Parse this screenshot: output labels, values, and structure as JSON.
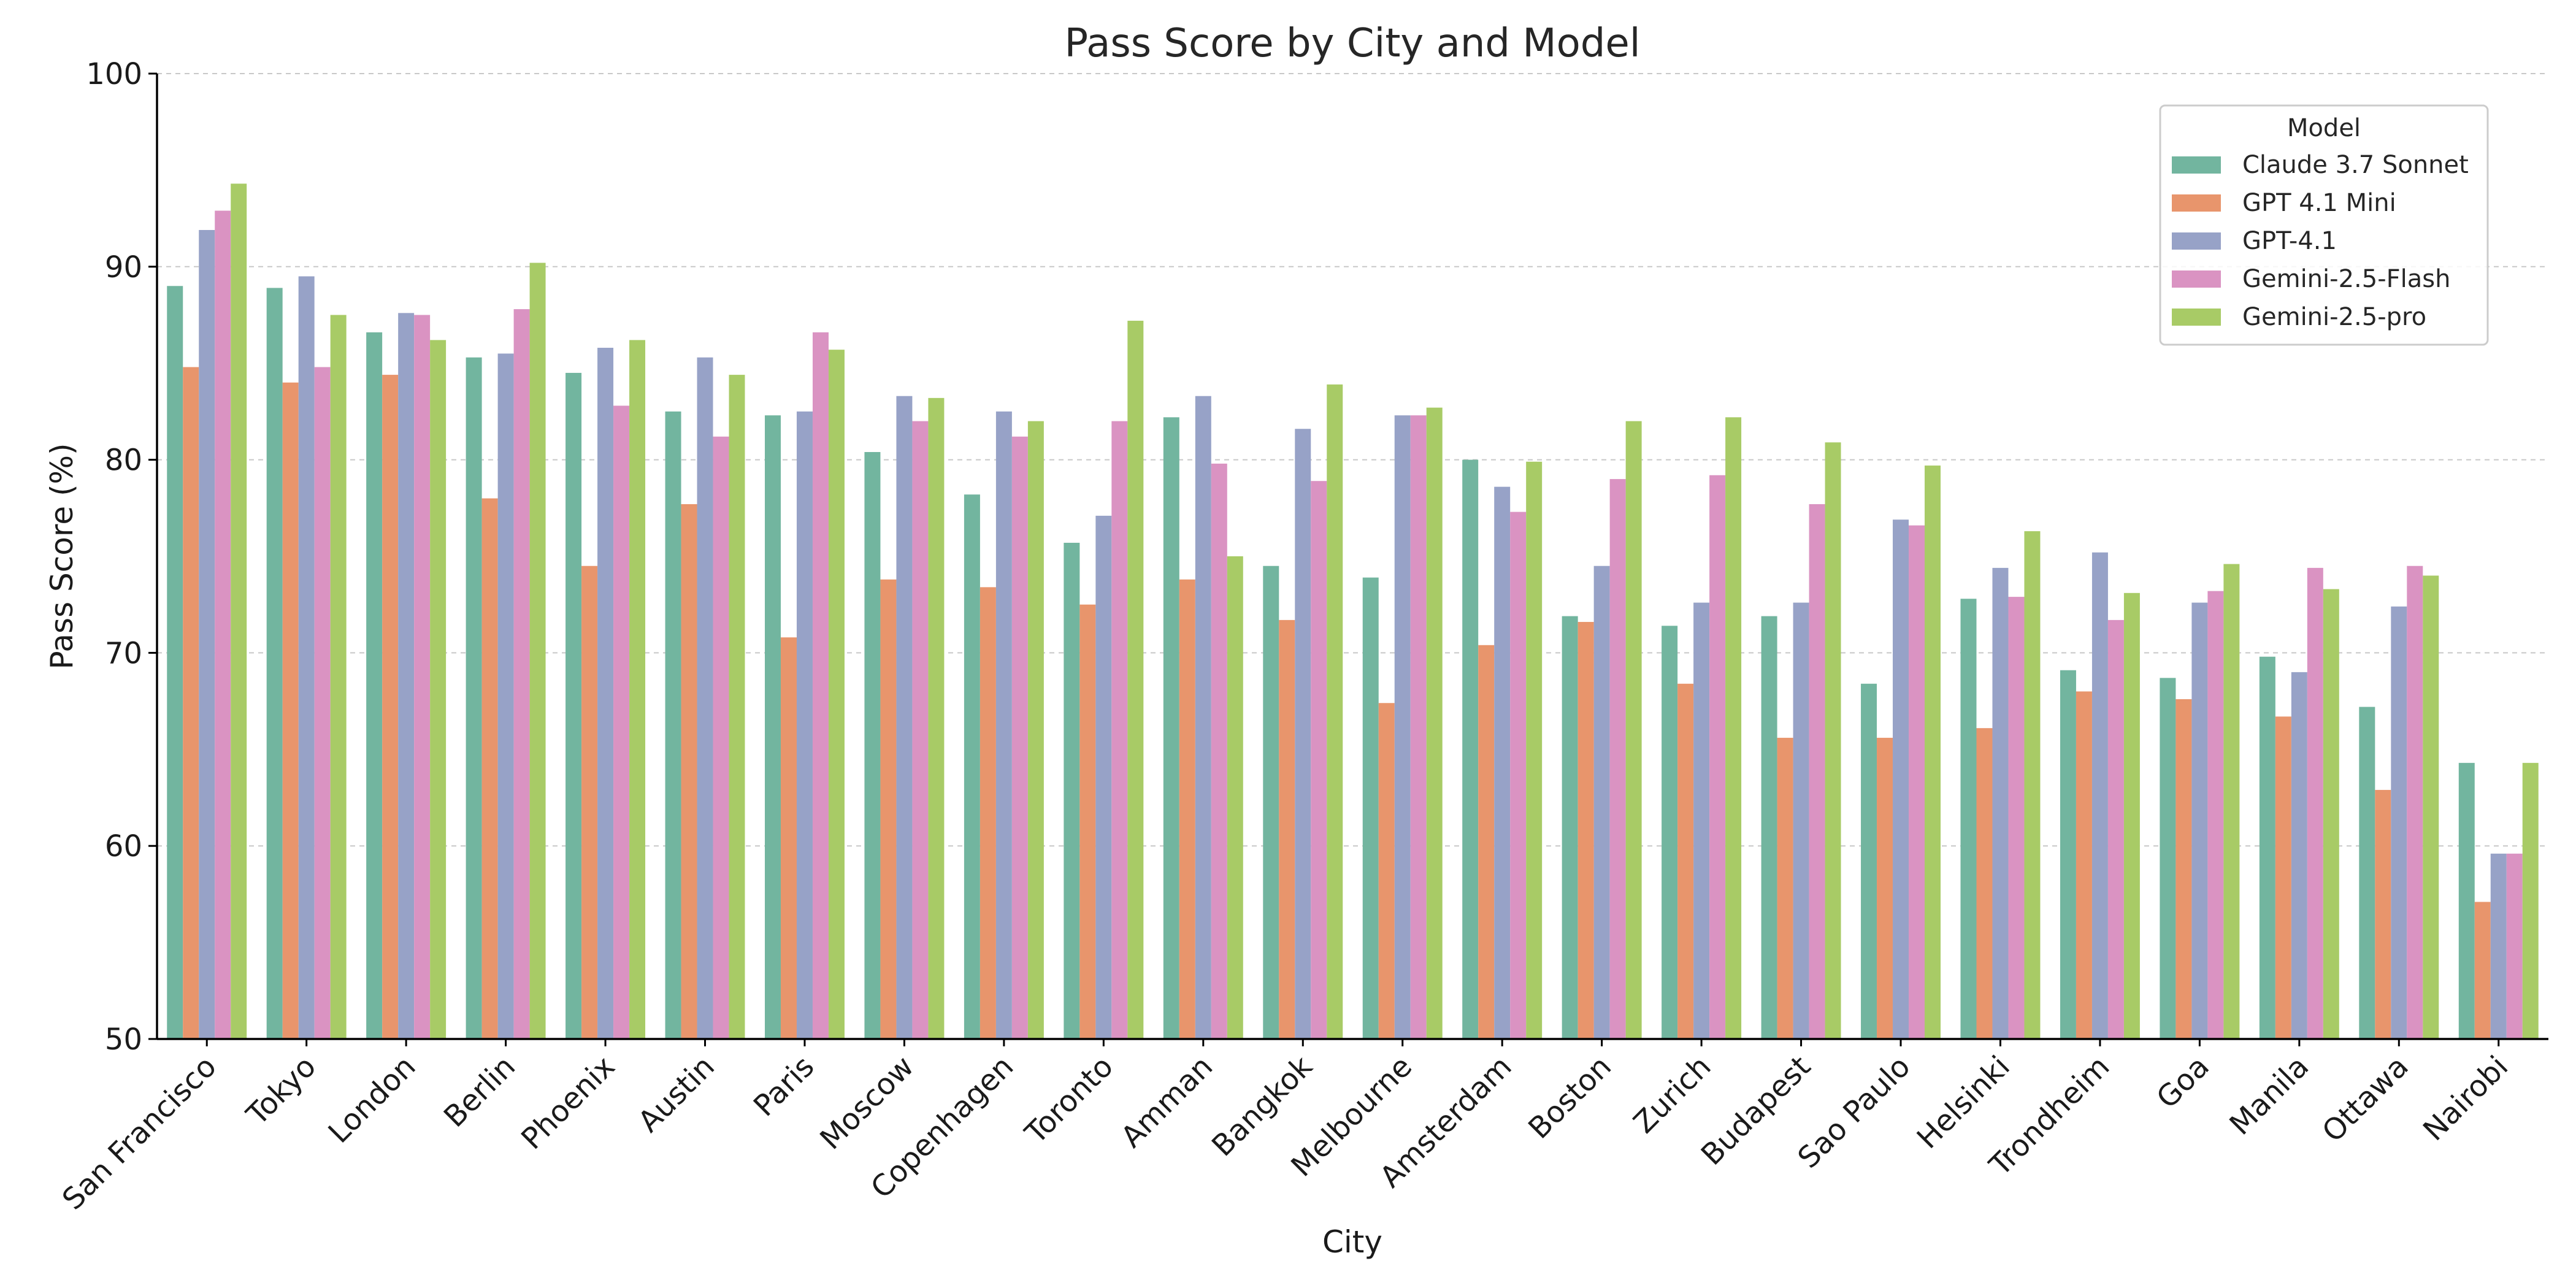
{
  "chart_data": {
    "type": "bar",
    "title": "Pass Score by City and Model",
    "xlabel": "City",
    "ylabel": "Pass Score (%)",
    "ylim": [
      50,
      100
    ],
    "yticks": [
      50,
      60,
      70,
      80,
      90,
      100
    ],
    "grid": "y-dashed",
    "legend": {
      "title": "Model",
      "position": "top-right"
    },
    "categories": [
      "San Francisco",
      "Tokyo",
      "London",
      "Berlin",
      "Phoenix",
      "Austin",
      "Paris",
      "Moscow",
      "Copenhagen",
      "Toronto",
      "Amman",
      "Bangkok",
      "Melbourne",
      "Amsterdam",
      "Boston",
      "Zurich",
      "Budapest",
      "Sao Paulo",
      "Helsinki",
      "Trondheim",
      "Goa",
      "Manila",
      "Ottawa",
      "Nairobi"
    ],
    "series": [
      {
        "name": "Claude 3.7 Sonnet",
        "color": "#72b59f",
        "values": [
          89.0,
          88.9,
          86.6,
          85.3,
          84.5,
          82.5,
          82.3,
          80.4,
          78.2,
          75.7,
          82.2,
          74.5,
          73.9,
          80.0,
          71.9,
          71.4,
          71.9,
          68.4,
          72.8,
          69.1,
          68.7,
          69.8,
          67.2,
          64.3
        ]
      },
      {
        "name": "GPT 4.1 Mini",
        "color": "#e8956c",
        "values": [
          84.8,
          84.0,
          84.4,
          78.0,
          74.5,
          77.7,
          70.8,
          73.8,
          73.4,
          72.5,
          73.8,
          71.7,
          67.4,
          70.4,
          71.6,
          68.4,
          65.6,
          65.6,
          66.1,
          68.0,
          67.6,
          66.7,
          62.9,
          57.1
        ]
      },
      {
        "name": "GPT-4.1",
        "color": "#97a2c7",
        "values": [
          91.9,
          89.5,
          87.6,
          85.5,
          85.8,
          85.3,
          82.5,
          83.3,
          82.5,
          77.1,
          83.3,
          81.6,
          82.3,
          78.6,
          74.5,
          72.6,
          72.6,
          76.9,
          74.4,
          75.2,
          72.6,
          69.0,
          72.4,
          59.6
        ]
      },
      {
        "name": "Gemini-2.5-Flash",
        "color": "#da93c2",
        "values": [
          92.9,
          84.8,
          87.5,
          87.8,
          82.8,
          81.2,
          86.6,
          82.0,
          81.2,
          82.0,
          79.8,
          78.9,
          82.3,
          77.3,
          79.0,
          79.2,
          77.7,
          76.6,
          72.9,
          71.7,
          73.2,
          74.4,
          74.5,
          59.6
        ]
      },
      {
        "name": "Gemini-2.5-pro",
        "color": "#a8cb66",
        "values": [
          94.3,
          87.5,
          86.2,
          90.2,
          86.2,
          84.4,
          85.7,
          83.2,
          82.0,
          87.2,
          75.0,
          83.9,
          82.7,
          79.9,
          82.0,
          82.2,
          80.9,
          79.7,
          76.3,
          73.1,
          74.6,
          73.3,
          74.0,
          64.3
        ]
      }
    ]
  }
}
